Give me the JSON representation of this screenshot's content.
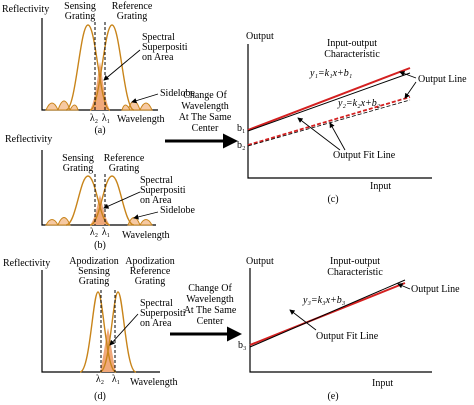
{
  "panel_a": {
    "y_axis_label": "Reflectivity",
    "sensing_grating": [
      "Sensing",
      "Grating"
    ],
    "reference_grating": [
      "Reference",
      "Grating"
    ],
    "superposition": [
      "Spectral",
      "Superpositi",
      "on Area"
    ],
    "sidelobe": "Sidelobe",
    "lambda2": "λ₂",
    "lambda1": "λ₁",
    "x_axis_label": "Wavelength",
    "caption": "(a)"
  },
  "arrow_top": [
    "Change Of",
    "Wavelength",
    "At The Same",
    "Center"
  ],
  "panel_c": {
    "y_axis_label": "Output",
    "characteristic": [
      "Input-output",
      "Characteristic"
    ],
    "eq1": "y₁=k₁x+b₁",
    "output_line": "Output Line",
    "eq2": "y₂=k₂x+b₂",
    "b1": "b₁",
    "b2": "b₂",
    "output_fit_line": "Output Fit Line",
    "x_axis_label": "Input",
    "caption": "(c)"
  },
  "panel_b": {
    "y_axis_label": "Reflectivity",
    "sensing_grating": [
      "Sensing",
      "Grating"
    ],
    "reference_grating": [
      "Reference",
      "Grating"
    ],
    "superposition": [
      "Spectral",
      "Superpositi",
      "on Area"
    ],
    "sidelobe": "Sidelobe",
    "lambda2": "λ₂",
    "lambda1": "λ₁",
    "x_axis_label": "Wavelength",
    "caption": "(b)"
  },
  "panel_d": {
    "y_axis_label": "Reflectivity",
    "sensing_grating": [
      "Apodization",
      "Sensing",
      "Grating"
    ],
    "reference_grating": [
      "Apodization",
      "Reference",
      "Grating"
    ],
    "superposition": [
      "Spectral",
      "Superpositi",
      "on Area"
    ],
    "lambda2": "λ₂",
    "lambda1": "λ₁",
    "x_axis_label": "Wavelength",
    "caption": "(d)"
  },
  "arrow_bottom": [
    "Change Of",
    "Wavelength",
    "At The Same",
    "Center"
  ],
  "panel_e": {
    "y_axis_label": "Output",
    "characteristic": [
      "Input-output",
      "Characteristic"
    ],
    "eq3": "y₃=k₃x+b₃",
    "output_line": "Output Line",
    "b3": "b₃",
    "output_fit_line": "Output Fit Line",
    "x_axis_label": "Input",
    "caption": "(e)"
  }
}
